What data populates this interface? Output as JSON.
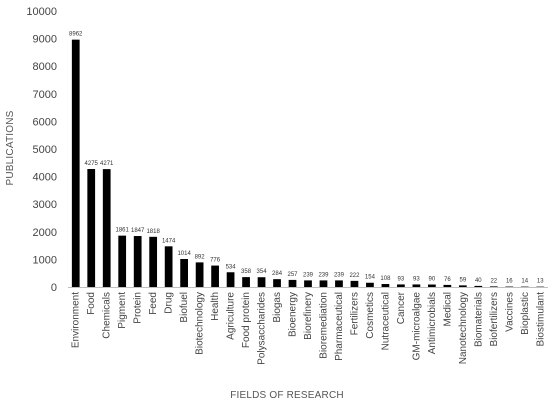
{
  "chart_data": {
    "type": "bar",
    "xlabel": "FIELDS OF RESEARCH",
    "ylabel": "PUBLICATIONS",
    "ylim": [
      0,
      10000
    ],
    "yticks": [
      0,
      1000,
      2000,
      3000,
      4000,
      5000,
      6000,
      7000,
      8000,
      9000,
      10000
    ],
    "grid": false,
    "legend": "none",
    "bar_color": "#000000",
    "categories": [
      "Environment",
      "Food",
      "Chemicals",
      "Pigment",
      "Protein",
      "Feed",
      "Drug",
      "Biofuel",
      "Biotechnology",
      "Health",
      "Agriculture",
      "Food protein",
      "Polysaccharides",
      "Biogas",
      "Bioenergy",
      "Biorefinery",
      "Bioremediation",
      "Pharmaceutical",
      "Fertilizers",
      "Cosmetics",
      "Nutraceutical",
      "Cancer",
      "GM-microalgae",
      "Antimicrobials",
      "Medical",
      "Nanotechnology",
      "Biomaterials",
      "Biofertilizers",
      "Vaccines",
      "Bioplastic",
      "Biostimulant"
    ],
    "values": [
      8962,
      4275,
      4271,
      1861,
      1847,
      1818,
      1474,
      1014,
      892,
      776,
      534,
      358,
      354,
      284,
      257,
      239,
      239,
      239,
      222,
      154,
      108,
      93,
      93,
      90,
      76,
      59,
      40,
      22,
      16,
      14,
      13
    ]
  }
}
